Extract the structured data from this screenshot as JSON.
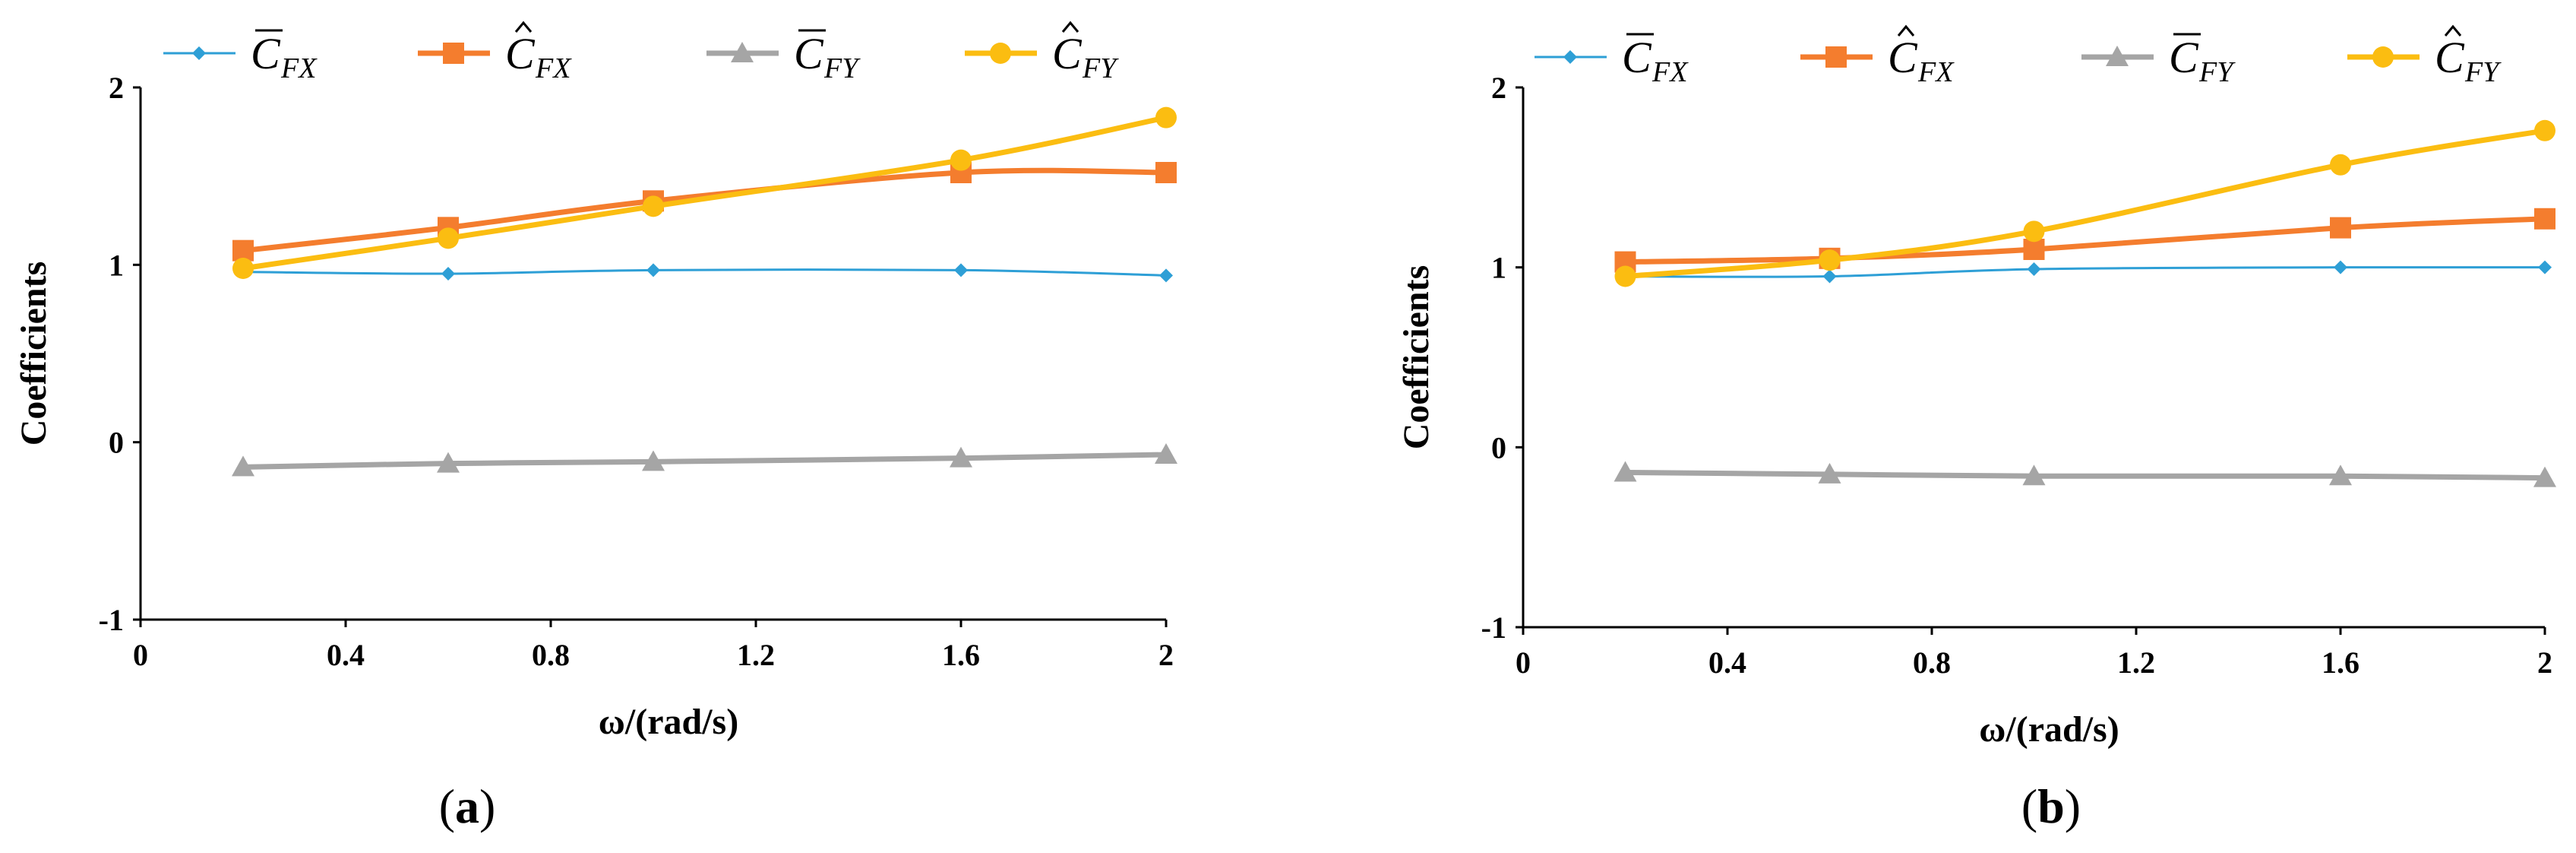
{
  "chart_data": [
    {
      "type": "line",
      "panel_label": "a",
      "xlabel": "ω/(rad/s)",
      "ylabel": "Coefficients",
      "xlim": [
        0,
        2
      ],
      "ylim": [
        -1,
        2
      ],
      "xticks": [
        "0",
        "0.4",
        "0.8",
        "1.2",
        "1.6",
        "2"
      ],
      "yticks": [
        "-1",
        "0",
        "1",
        "2"
      ],
      "grid": false,
      "legend_position": "top",
      "x": [
        0.2,
        0.6,
        1.0,
        1.6,
        2.0
      ],
      "series": [
        {
          "name": "C̄FX",
          "symbol": "C",
          "accent": "bar",
          "subscript": "FX",
          "color": "#2e9fd6",
          "marker": "diamond",
          "values": [
            0.96,
            0.95,
            0.97,
            0.97,
            0.94
          ]
        },
        {
          "name": "ĈFX",
          "symbol": "C",
          "accent": "hat",
          "subscript": "FX",
          "color": "#f47d2e",
          "marker": "square",
          "values": [
            1.08,
            1.21,
            1.36,
            1.52,
            1.52
          ]
        },
        {
          "name": "C̄FY",
          "symbol": "C",
          "accent": "bar",
          "subscript": "FY",
          "color": "#a5a5a5",
          "marker": "triangle",
          "values": [
            -0.14,
            -0.12,
            -0.11,
            -0.09,
            -0.07
          ]
        },
        {
          "name": "ĈFY",
          "symbol": "C",
          "accent": "hat",
          "subscript": "FY",
          "color": "#fbbd11",
          "marker": "circle",
          "values": [
            0.98,
            1.15,
            1.33,
            1.59,
            1.83
          ]
        }
      ]
    },
    {
      "type": "line",
      "panel_label": "b",
      "xlabel": "ω/(rad/s)",
      "ylabel": "Coefficients",
      "xlim": [
        0,
        2
      ],
      "ylim": [
        -1,
        2
      ],
      "xticks": [
        "0",
        "0.4",
        "0.8",
        "1.2",
        "1.6",
        "2"
      ],
      "yticks": [
        "-1",
        "0",
        "1",
        "2"
      ],
      "grid": false,
      "legend_position": "top",
      "x": [
        0.2,
        0.6,
        1.0,
        1.6,
        2.0
      ],
      "series": [
        {
          "name": "C̄FX",
          "symbol": "C",
          "accent": "bar",
          "subscript": "FX",
          "color": "#2e9fd6",
          "marker": "diamond",
          "values": [
            0.95,
            0.95,
            0.99,
            1.0,
            1.0
          ]
        },
        {
          "name": "ĈFX",
          "symbol": "C",
          "accent": "hat",
          "subscript": "FX",
          "color": "#f47d2e",
          "marker": "square",
          "values": [
            1.03,
            1.05,
            1.1,
            1.22,
            1.27
          ]
        },
        {
          "name": "C̄FY",
          "symbol": "C",
          "accent": "bar",
          "subscript": "FY",
          "color": "#a5a5a5",
          "marker": "triangle",
          "values": [
            -0.14,
            -0.15,
            -0.16,
            -0.16,
            -0.17
          ]
        },
        {
          "name": "ĈFY",
          "symbol": "C",
          "accent": "hat",
          "subscript": "FY",
          "color": "#fbbd11",
          "marker": "circle",
          "values": [
            0.95,
            1.04,
            1.2,
            1.57,
            1.76
          ]
        }
      ]
    }
  ]
}
